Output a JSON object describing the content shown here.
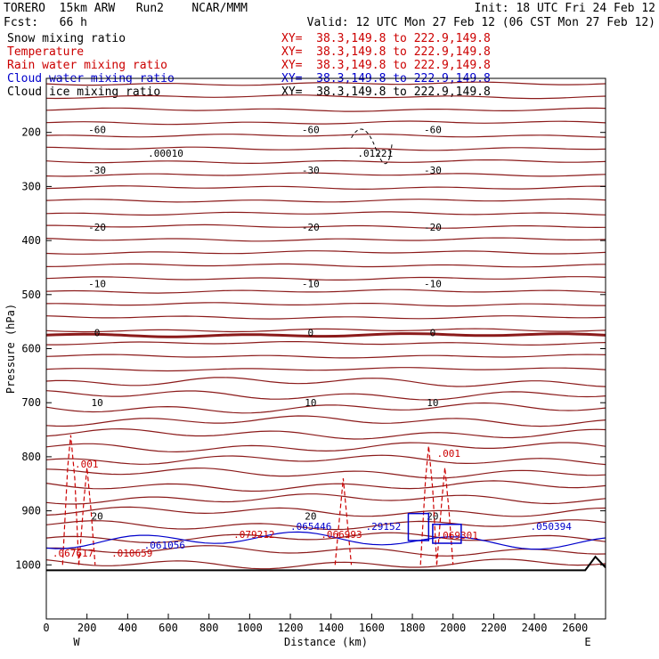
{
  "header": {
    "model": "TORERO  15km ARW   Run2    NCAR/MMM",
    "init": "Init: 18 UTC Fri 24 Feb 12",
    "fcst": "Fcst:   66 h",
    "valid": "Valid: 12 UTC Mon 27 Feb 12 (06 CST Mon 27 Feb 12)"
  },
  "legend": [
    {
      "label": "Snow mixing ratio",
      "xy": "XY=  38.3,149.8 to 222.9,149.8",
      "color": "#000000"
    },
    {
      "label": "Temperature",
      "xy": "XY=  38.3,149.8 to 222.9,149.8",
      "color": "#cc0000"
    },
    {
      "label": "Rain water mixing ratio",
      "xy": "XY=  38.3,149.8 to 222.9,149.8",
      "color": "#cc0000"
    },
    {
      "label": "Cloud water mixing ratio",
      "xy": "XY=  38.3,149.8 to 222.9,149.8",
      "color": "#0000cc"
    },
    {
      "label": "Cloud ice mixing ratio",
      "xy": "XY=  38.3,149.8 to 222.9,149.8",
      "color": "#000000"
    }
  ],
  "chart_data": {
    "type": "line",
    "xlabel": "Distance (km)",
    "ylabel": "Pressure (hPa)",
    "xlim": [
      0,
      2750
    ],
    "ylim": [
      1100,
      100
    ],
    "xticks": [
      0,
      200,
      400,
      600,
      800,
      1000,
      1200,
      1400,
      1600,
      1800,
      2000,
      2200,
      2400,
      2600
    ],
    "yticks": [
      200,
      300,
      400,
      500,
      600,
      700,
      800,
      900,
      1000
    ],
    "left_label": "W",
    "right_label": "E",
    "temperature_contours": [
      {
        "label": "-60",
        "p": 195
      },
      {
        "label": "-30",
        "p": 270
      },
      {
        "label": "-20",
        "p": 375
      },
      {
        "label": "-10",
        "p": 480
      },
      {
        "label": "0",
        "p": 570
      },
      {
        "label": "10",
        "p": 700
      },
      {
        "label": "20",
        "p": 910
      }
    ],
    "annotations": [
      {
        "text": ".00010",
        "x": 500,
        "p": 245,
        "color": "#000000"
      },
      {
        "text": ".01221",
        "x": 1530,
        "p": 245,
        "color": "#000000"
      },
      {
        "text": ".001",
        "x": 140,
        "p": 820,
        "color": "#cc0000"
      },
      {
        "text": ".001",
        "x": 1920,
        "p": 800,
        "color": "#cc0000"
      },
      {
        "text": ".067617",
        "x": 30,
        "p": 985,
        "color": "#cc0000"
      },
      {
        "text": ".010659",
        "x": 320,
        "p": 985,
        "color": "#cc0000"
      },
      {
        "text": ".061056",
        "x": 480,
        "p": 970,
        "color": "#0000cc"
      },
      {
        "text": ".079212",
        "x": 920,
        "p": 950,
        "color": "#cc0000"
      },
      {
        "text": ".065446",
        "x": 1200,
        "p": 935,
        "color": "#0000cc"
      },
      {
        "text": ".066993",
        "x": 1350,
        "p": 950,
        "color": "#cc0000"
      },
      {
        "text": ".29152",
        "x": 1570,
        "p": 935,
        "color": "#0000cc"
      },
      {
        "text": ".069301",
        "x": 1920,
        "p": 952,
        "color": "#cc0000"
      },
      {
        "text": ".050394",
        "x": 2380,
        "p": 935,
        "color": "#0000cc"
      }
    ]
  },
  "colors": {
    "temperature": "#8b1a1a",
    "rain": "#cc0000",
    "cloud_water": "#0000cc",
    "ice": "#000000"
  }
}
